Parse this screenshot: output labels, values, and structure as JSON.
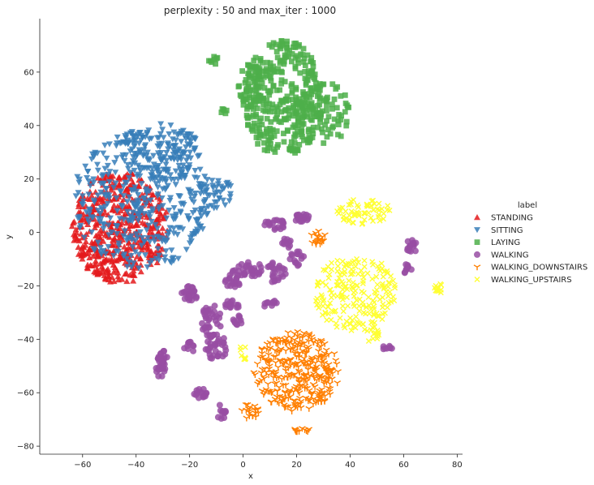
{
  "chart_data": {
    "type": "scatter",
    "title": "perplexity : 50 and max_iter : 1000",
    "xlabel": "x",
    "ylabel": "y",
    "xlim": [
      -76,
      82
    ],
    "ylim": [
      -83,
      80
    ],
    "xticks": [
      -60,
      -40,
      -20,
      0,
      20,
      40,
      60,
      80
    ],
    "yticks": [
      -80,
      -60,
      -40,
      -20,
      0,
      20,
      40,
      60
    ],
    "grid": false,
    "legend": {
      "title": "label",
      "placement": "right"
    },
    "series": [
      {
        "name": "STANDING",
        "marker": "triangle-up",
        "color": "#e41a1c",
        "clusters": [
          {
            "cx": -46,
            "cy": 2,
            "rx": 18,
            "ry": 21,
            "n": 520
          }
        ]
      },
      {
        "name": "SITTING",
        "marker": "triangle-down",
        "color": "#377eb8",
        "clusters": [
          {
            "cx": -38,
            "cy": 12,
            "rx": 26,
            "ry": 26,
            "n": 420
          },
          {
            "cx": -30,
            "cy": 30,
            "rx": 15,
            "ry": 11,
            "n": 120
          },
          {
            "cx": -10,
            "cy": 15,
            "rx": 6,
            "ry": 6,
            "n": 40
          }
        ]
      },
      {
        "name": "LAYING",
        "marker": "square",
        "color": "#4daf4a",
        "clusters": [
          {
            "cx": 15,
            "cy": 50,
            "rx": 15,
            "ry": 22,
            "n": 360
          },
          {
            "cx": 30,
            "cy": 45,
            "rx": 10,
            "ry": 12,
            "n": 80
          },
          {
            "cx": 3,
            "cy": 55,
            "rx": 5,
            "ry": 8,
            "n": 40
          },
          {
            "cx": -11,
            "cy": 64,
            "rx": 2,
            "ry": 2,
            "n": 8
          },
          {
            "cx": -8,
            "cy": 45,
            "rx": 2,
            "ry": 2,
            "n": 6
          }
        ]
      },
      {
        "name": "WALKING",
        "marker": "circle",
        "color": "#984ea3",
        "clusters": [
          {
            "cx": -12,
            "cy": -33,
            "rx": 4,
            "ry": 6,
            "n": 35
          },
          {
            "cx": -10,
            "cy": -43,
            "rx": 4,
            "ry": 5,
            "n": 35
          },
          {
            "cx": -20,
            "cy": -23,
            "rx": 3,
            "ry": 3,
            "n": 25
          },
          {
            "cx": -30,
            "cy": -46,
            "rx": 2,
            "ry": 3,
            "n": 15
          },
          {
            "cx": -31,
            "cy": -51,
            "rx": 2,
            "ry": 3,
            "n": 18
          },
          {
            "cx": -16,
            "cy": -60,
            "rx": 3,
            "ry": 2,
            "n": 15
          },
          {
            "cx": -20,
            "cy": -43,
            "rx": 2,
            "ry": 2,
            "n": 10
          },
          {
            "cx": 2,
            "cy": -14,
            "rx": 6,
            "ry": 3,
            "n": 30
          },
          {
            "cx": -4,
            "cy": -18,
            "rx": 3,
            "ry": 3,
            "n": 20
          },
          {
            "cx": -4,
            "cy": -27,
            "rx": 3,
            "ry": 2,
            "n": 15
          },
          {
            "cx": -2,
            "cy": -33,
            "rx": 2,
            "ry": 2,
            "n": 10
          },
          {
            "cx": 12,
            "cy": 3,
            "rx": 4,
            "ry": 2,
            "n": 20
          },
          {
            "cx": 22,
            "cy": 5,
            "rx": 3,
            "ry": 2,
            "n": 18
          },
          {
            "cx": 16,
            "cy": -4,
            "rx": 2,
            "ry": 2,
            "n": 10
          },
          {
            "cx": 12,
            "cy": -15,
            "rx": 4,
            "ry": 4,
            "n": 25
          },
          {
            "cx": 20,
            "cy": -10,
            "rx": 3,
            "ry": 3,
            "n": 15
          },
          {
            "cx": 10,
            "cy": -27,
            "rx": 3,
            "ry": 2,
            "n": 10
          },
          {
            "cx": 63,
            "cy": -5,
            "rx": 2,
            "ry": 3,
            "n": 15
          },
          {
            "cx": 61,
            "cy": -14,
            "rx": 2,
            "ry": 2,
            "n": 10
          },
          {
            "cx": 54,
            "cy": -43,
            "rx": 2,
            "ry": 1,
            "n": 8
          },
          {
            "cx": -8,
            "cy": -67,
            "rx": 2,
            "ry": 3,
            "n": 10
          }
        ]
      },
      {
        "name": "WALKING_DOWNSTAIRS",
        "marker": "tri-down",
        "color": "#ff7f00",
        "clusters": [
          {
            "cx": 20,
            "cy": -52,
            "rx": 16,
            "ry": 15,
            "n": 340
          },
          {
            "cx": 28,
            "cy": -2,
            "rx": 3,
            "ry": 3,
            "n": 20
          },
          {
            "cx": 2,
            "cy": -67,
            "rx": 4,
            "ry": 3,
            "n": 20
          },
          {
            "cx": 22,
            "cy": -74,
            "rx": 3,
            "ry": 1,
            "n": 12
          }
        ]
      },
      {
        "name": "WALKING_UPSTAIRS",
        "marker": "x",
        "color": "#ffff33",
        "clusters": [
          {
            "cx": 42,
            "cy": -23,
            "rx": 15,
            "ry": 15,
            "n": 200
          },
          {
            "cx": 45,
            "cy": 8,
            "rx": 10,
            "ry": 5,
            "n": 60
          },
          {
            "cx": 73,
            "cy": -21,
            "rx": 1.5,
            "ry": 2,
            "n": 12
          },
          {
            "cx": 0,
            "cy": -45,
            "rx": 2,
            "ry": 3,
            "n": 8
          },
          {
            "cx": 48,
            "cy": -38,
            "rx": 3,
            "ry": 3,
            "n": 12
          }
        ]
      }
    ]
  }
}
